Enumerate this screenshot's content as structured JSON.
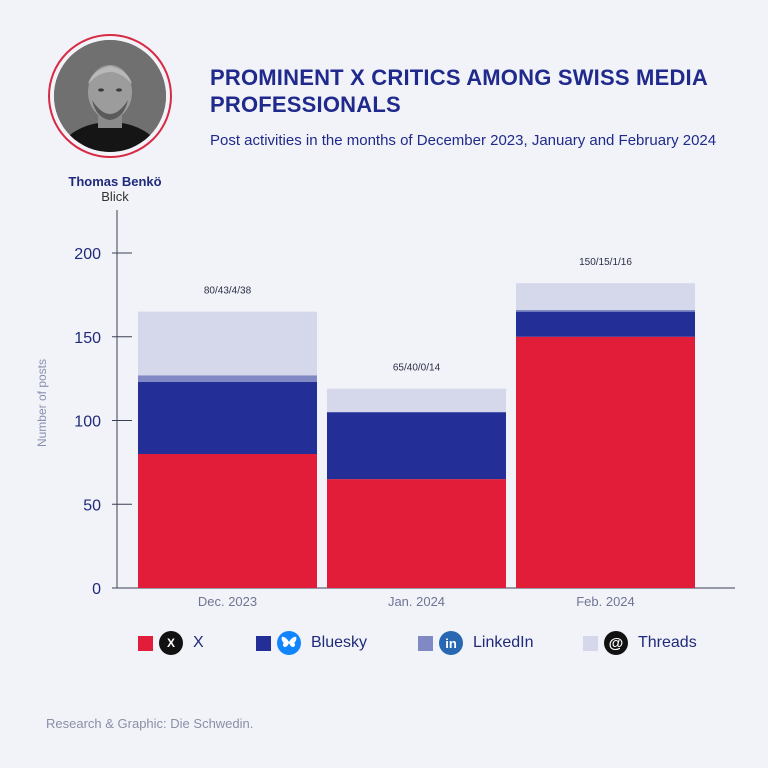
{
  "header": {
    "title": "PROMINENT X CRITICS AMONG SWISS MEDIA PROFESSIONALS",
    "subtitle": "Post activities in the months of December 2023, January and February 2024"
  },
  "person": {
    "name": "Thomas Benkö",
    "outlet": "Blick"
  },
  "colors": {
    "x": "#e11d3a",
    "bluesky": "#232f97",
    "linkedin": "#8089c4",
    "threads": "#d5d8ea",
    "accent": "#d82a44"
  },
  "legend": [
    {
      "key": "x",
      "label": "X",
      "icon": "x-logo-icon"
    },
    {
      "key": "bluesky",
      "label": "Bluesky",
      "icon": "bluesky-butterfly-icon"
    },
    {
      "key": "linkedin",
      "label": "LinkedIn",
      "icon": "linkedin-logo-icon"
    },
    {
      "key": "threads",
      "label": "Threads",
      "icon": "threads-logo-icon"
    }
  ],
  "chart_data": {
    "type": "bar",
    "stacked": true,
    "title": "PROMINENT X CRITICS AMONG SWISS MEDIA PROFESSIONALS",
    "xlabel": "",
    "ylabel": "Number of posts",
    "ylim": [
      0,
      220
    ],
    "yticks": [
      0,
      50,
      100,
      150,
      200
    ],
    "categories": [
      "Dec. 2023",
      "Jan. 2024",
      "Feb. 2024"
    ],
    "series": [
      {
        "name": "X",
        "key": "x",
        "values": [
          80,
          65,
          150
        ]
      },
      {
        "name": "Bluesky",
        "key": "bluesky",
        "values": [
          43,
          40,
          15
        ]
      },
      {
        "name": "LinkedIn",
        "key": "linkedin",
        "values": [
          4,
          0,
          1
        ]
      },
      {
        "name": "Threads",
        "key": "threads",
        "values": [
          38,
          14,
          16
        ]
      }
    ],
    "annotations": [
      "80/43/4/38",
      "65/40/0/14",
      "150/15/1/16"
    ]
  },
  "footer": {
    "credit": "Research & Graphic: Die Schwedin."
  }
}
